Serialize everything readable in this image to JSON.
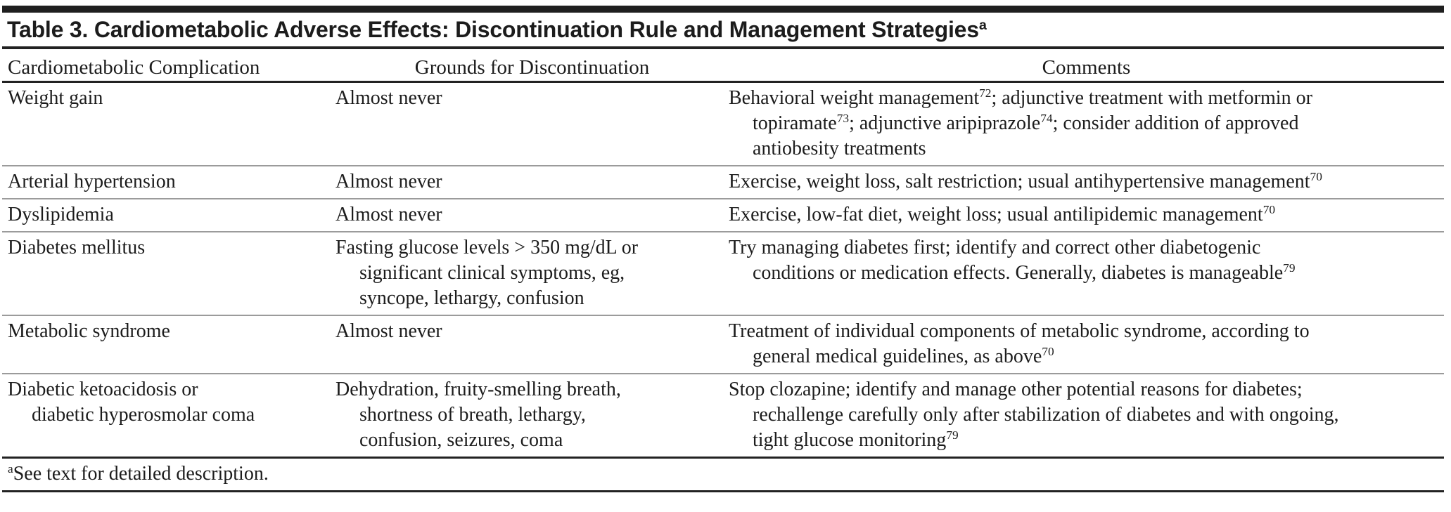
{
  "title": {
    "text": "Table 3. Cardiometabolic Adverse Effects: Discontinuation Rule and Management Strategies",
    "sup": "a"
  },
  "columns": [
    {
      "label": "Cardiometabolic Complication",
      "align": "left"
    },
    {
      "label": "Grounds for Discontinuation",
      "align": "center"
    },
    {
      "label": "Comments",
      "align": "center"
    }
  ],
  "rows": [
    {
      "complication": [
        {
          "t": "Weight gain"
        }
      ],
      "grounds": [
        {
          "t": "Almost never"
        }
      ],
      "comments": [
        {
          "t": "Behavioral weight management"
        },
        {
          "sup": "72"
        },
        {
          "t": "; adjunctive treatment with metformin or"
        },
        {
          "br": true
        },
        {
          "t": "topiramate"
        },
        {
          "sup": "73"
        },
        {
          "t": "; adjunctive aripiprazole"
        },
        {
          "sup": "74"
        },
        {
          "t": "; consider addition of approved"
        },
        {
          "br": true
        },
        {
          "t": "antiobesity treatments"
        }
      ]
    },
    {
      "complication": [
        {
          "t": "Arterial hypertension"
        }
      ],
      "grounds": [
        {
          "t": "Almost never"
        }
      ],
      "comments": [
        {
          "t": "Exercise, weight loss, salt restriction; usual antihypertensive management"
        },
        {
          "sup": "70"
        }
      ]
    },
    {
      "complication": [
        {
          "t": "Dyslipidemia"
        }
      ],
      "grounds": [
        {
          "t": "Almost never"
        }
      ],
      "comments": [
        {
          "t": "Exercise, low-fat diet, weight loss; usual antilipidemic management"
        },
        {
          "sup": "70"
        }
      ]
    },
    {
      "complication": [
        {
          "t": "Diabetes mellitus"
        }
      ],
      "grounds": [
        {
          "t": "Fasting glucose levels > 350 mg/dL or"
        },
        {
          "br": true
        },
        {
          "t": "significant clinical symptoms, eg,"
        },
        {
          "br": true
        },
        {
          "t": "syncope, lethargy, confusion"
        }
      ],
      "comments": [
        {
          "t": "Try managing diabetes first; identify and correct other diabetogenic"
        },
        {
          "br": true
        },
        {
          "t": "conditions or medication effects. Generally, diabetes is manageable"
        },
        {
          "sup": "79"
        }
      ]
    },
    {
      "complication": [
        {
          "t": "Metabolic syndrome"
        }
      ],
      "grounds": [
        {
          "t": "Almost never"
        }
      ],
      "comments": [
        {
          "t": "Treatment of individual components of metabolic syndrome, according to"
        },
        {
          "br": true
        },
        {
          "t": "general medical guidelines, as above"
        },
        {
          "sup": "70"
        }
      ]
    },
    {
      "complication": [
        {
          "t": "Diabetic ketoacidosis or"
        },
        {
          "br": true
        },
        {
          "t": "diabetic hyperosmolar coma"
        }
      ],
      "grounds": [
        {
          "t": "Dehydration, fruity-smelling breath,"
        },
        {
          "br": true
        },
        {
          "t": "shortness of breath, lethargy,"
        },
        {
          "br": true
        },
        {
          "t": "confusion, seizures, coma"
        }
      ],
      "comments": [
        {
          "t": "Stop clozapine; identify and manage other potential reasons for diabetes;"
        },
        {
          "br": true
        },
        {
          "t": "rechallenge carefully only after stabilization of diabetes and with ongoing,"
        },
        {
          "br": true
        },
        {
          "t": "tight glucose monitoring"
        },
        {
          "sup": "79"
        }
      ]
    }
  ],
  "footnote": {
    "sup": "a",
    "text": "See text for detailed description."
  },
  "colors": {
    "text": "#1c1c1c",
    "heavy_rule": "#222222",
    "light_rule": "#9b9b9b",
    "top_bar": "#1f1f1f",
    "background": "#ffffff"
  }
}
